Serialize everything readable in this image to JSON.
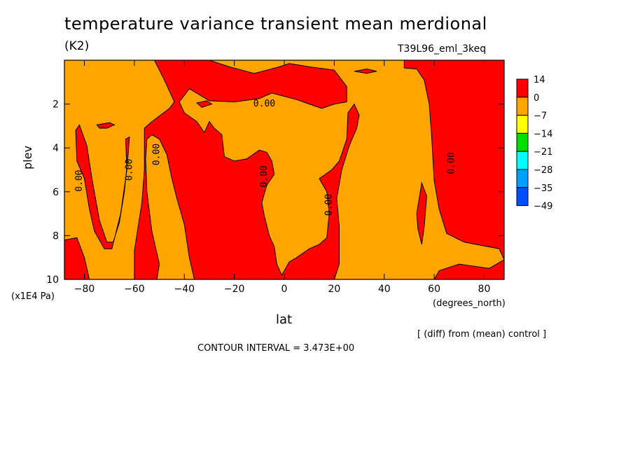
{
  "header": {
    "title": "temperature variance transient mean merdional",
    "units": "(K2)",
    "run": "T39L96_eml_3keq"
  },
  "footer": {
    "diff_note": "[ (diff) from (mean) control ]",
    "contour_interval": "CONTOUR INTERVAL = 3.473E+00"
  },
  "chart_data": {
    "type": "heatmap",
    "title": "temperature variance transient mean merdional",
    "xlabel": "lat",
    "xunit": "(degrees_north)",
    "ylabel": "plev",
    "yunit": "(x1E4 Pa)",
    "xlim": [
      -88,
      88
    ],
    "ylim": [
      0,
      10
    ],
    "y_inverted": true,
    "x_ticks": [
      -80,
      -60,
      -40,
      -20,
      0,
      20,
      40,
      60,
      80
    ],
    "y_ticks": [
      2,
      4,
      6,
      8,
      10
    ],
    "colorbar": {
      "levels": [
        "14",
        "0",
        "-7",
        "-14",
        "-21",
        "-28",
        "-35",
        "-49"
      ],
      "colors": [
        "#ff0000",
        "#ffa500",
        "#ffff00",
        "#00e000",
        "#00ffff",
        "#00a0ff",
        "#0050ff"
      ]
    },
    "contour_labels": [
      {
        "text": "0.00",
        "x": -82,
        "y": 5.5
      },
      {
        "text": "0.00",
        "x": -62,
        "y": 5.0
      },
      {
        "text": "0.00",
        "x": -51,
        "y": 4.3
      },
      {
        "text": "0.00",
        "x": -8,
        "y": 2.0
      },
      {
        "text": "0.00",
        "x": -8,
        "y": 5.3
      },
      {
        "text": "0.00",
        "x": 18,
        "y": 6.6
      },
      {
        "text": "0.00",
        "x": 67,
        "y": 4.7
      }
    ],
    "red_regions_approx": [
      {
        "desc": "band -88..-83",
        "x": [
          -88,
          -83
        ],
        "y": [
          8.2,
          10
        ]
      },
      {
        "desc": "column near -80",
        "x": [
          -84,
          -68
        ],
        "y": [
          2.9,
          9.7
        ]
      },
      {
        "desc": "central tongue -55..-10",
        "x": [
          -56,
          -6
        ],
        "y": [
          1.8,
          10
        ]
      },
      {
        "desc": "top band -57..25",
        "x": [
          -57,
          25
        ],
        "y": [
          0,
          1.9
        ]
      },
      {
        "desc": "plume 0..25",
        "x": [
          -6,
          25
        ],
        "y": [
          3.5,
          10
        ]
      },
      {
        "desc": "right block 55..88",
        "x": [
          55,
          88
        ],
        "y": [
          0,
          10
        ]
      }
    ],
    "colorbar_selected_range": "red"
  }
}
